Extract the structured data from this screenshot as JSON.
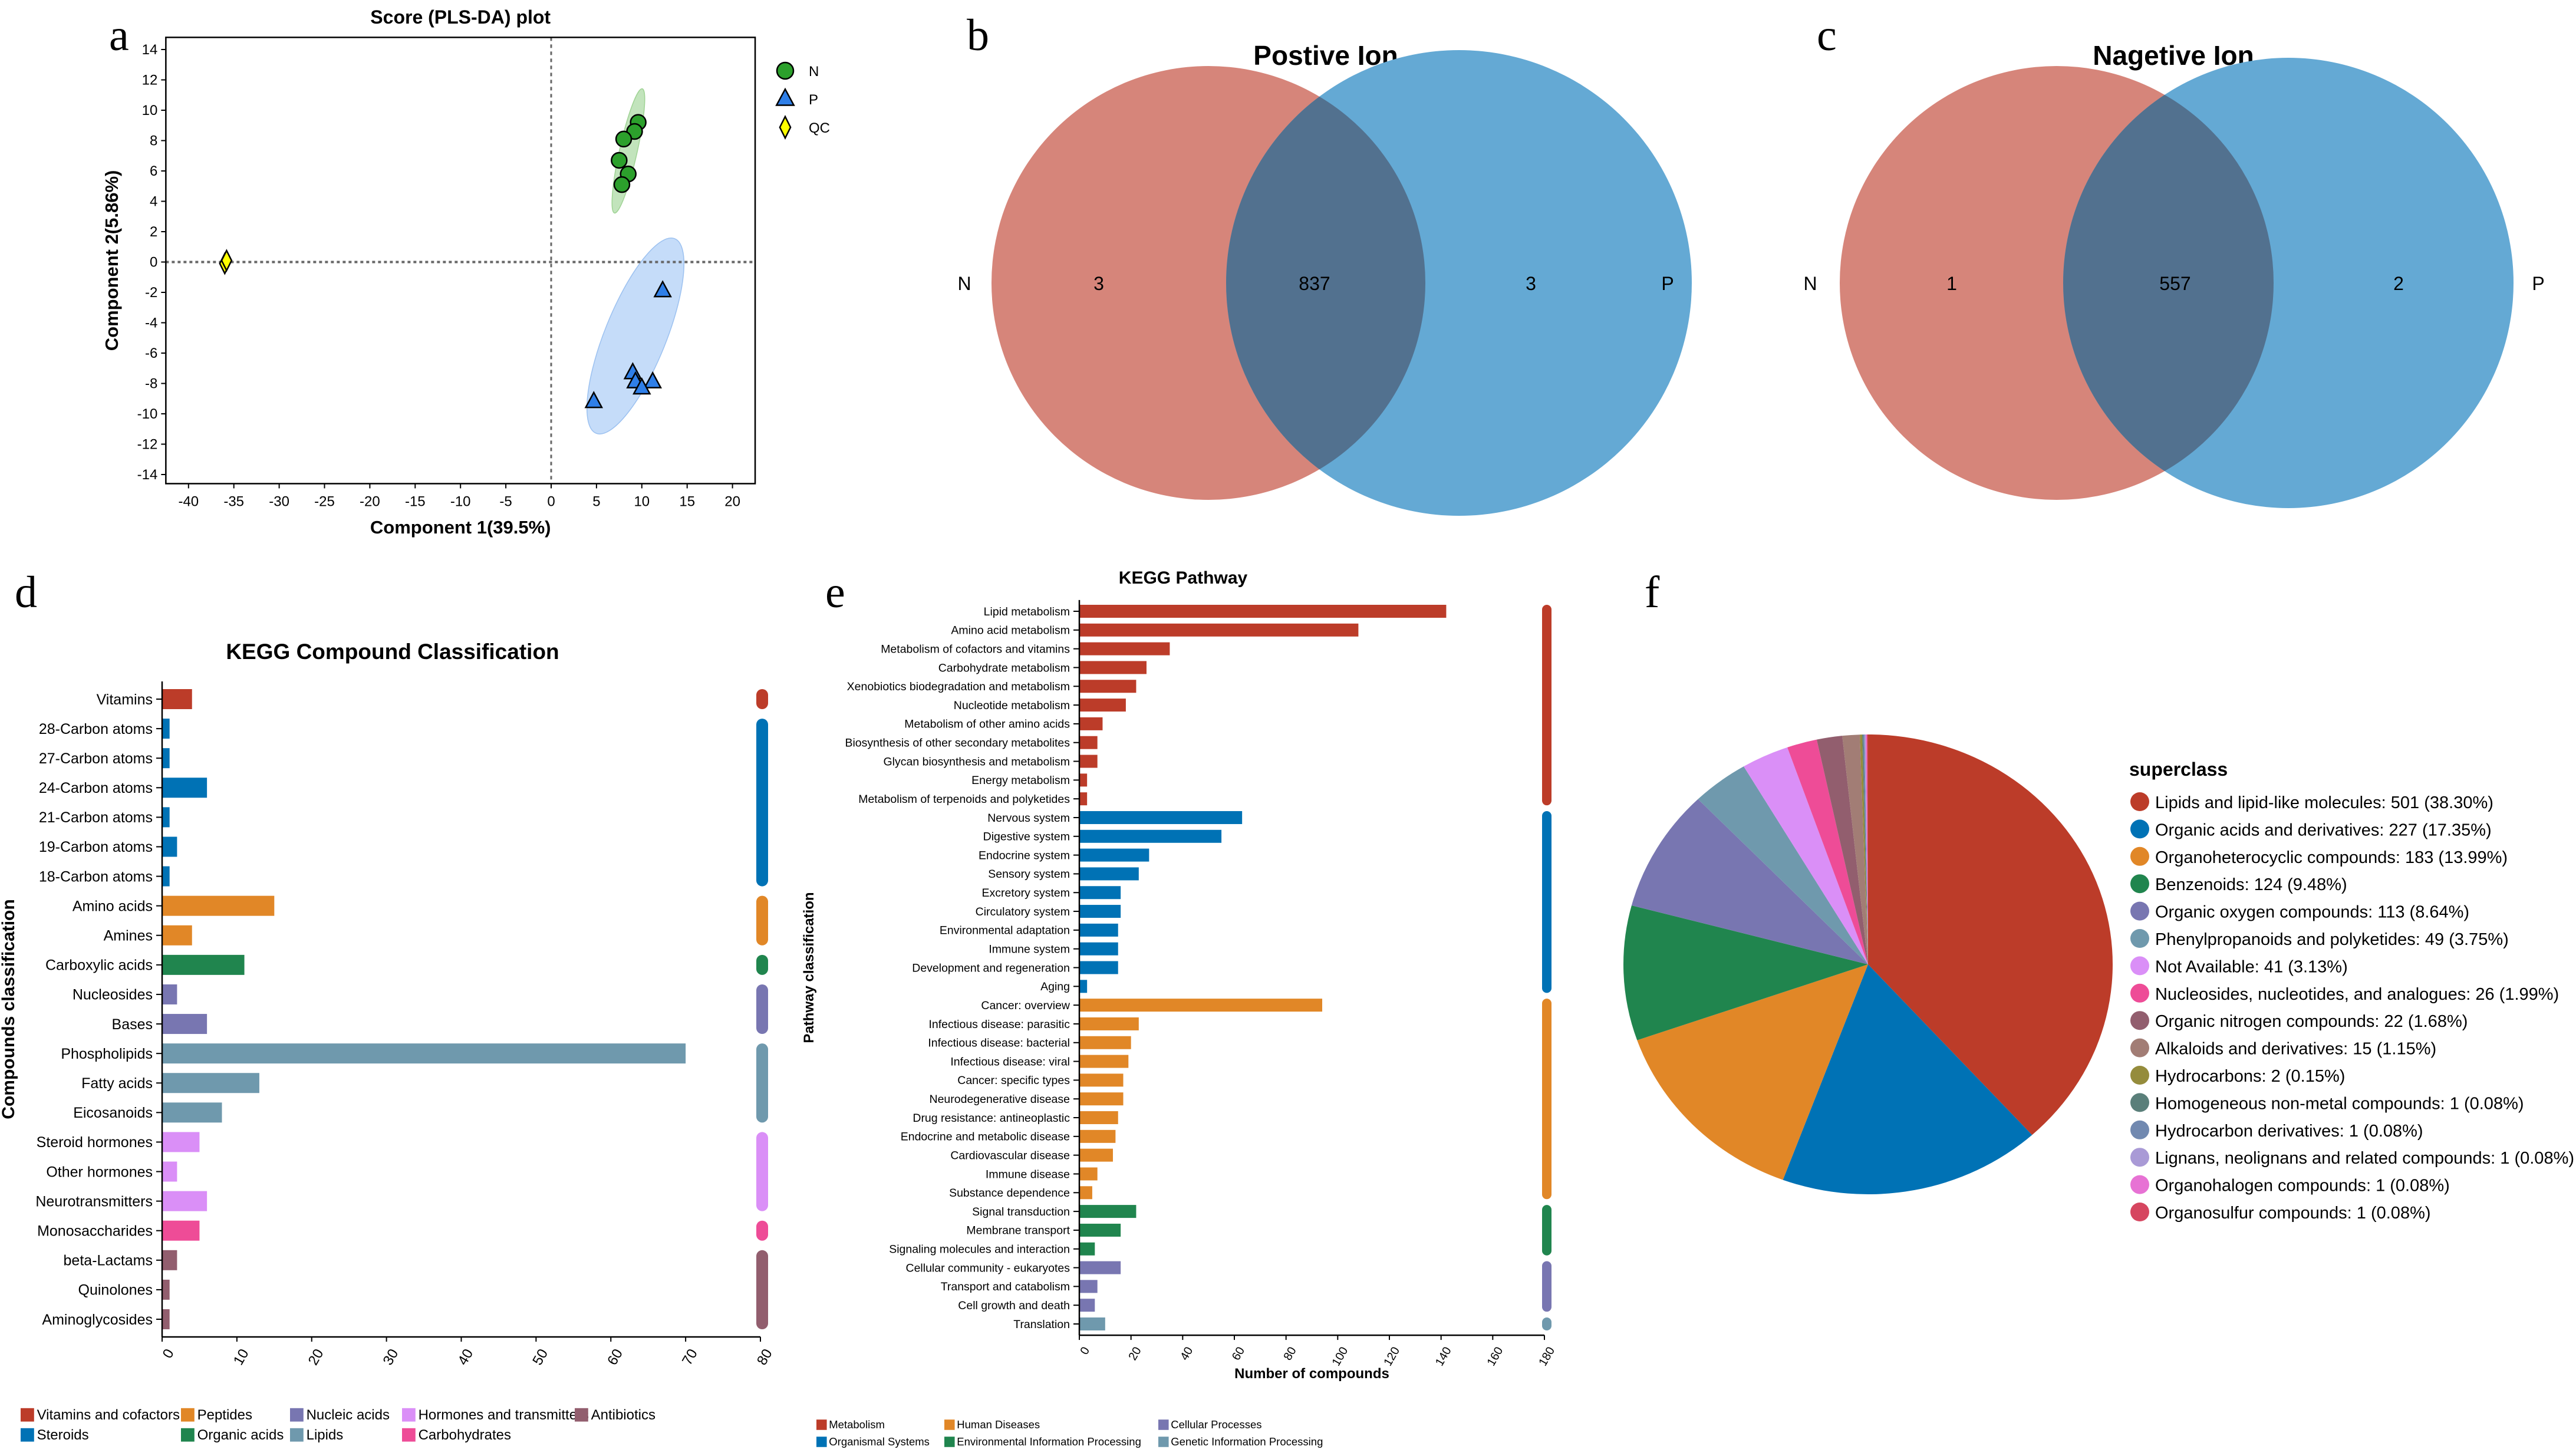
{
  "panel_letters": [
    "a",
    "b",
    "c",
    "d",
    "e",
    "f"
  ],
  "chart_data": [
    {
      "panel": "a",
      "type": "scatter",
      "title": "Score (PLS-DA) plot",
      "xlabel": "Component 1(39.5%)",
      "ylabel": "Component 2(5.86%)",
      "xlim": [
        -42.5,
        22.5
      ],
      "ylim": [
        -14.6,
        14.8
      ],
      "xticks": [
        -40,
        -35,
        -30,
        -25,
        -20,
        -15,
        -10,
        -5,
        0,
        5,
        10,
        15,
        20
      ],
      "yticks": [
        14,
        12,
        10,
        8,
        6,
        4,
        2,
        0,
        -2,
        -4,
        -6,
        -8,
        -10,
        -12,
        -14
      ],
      "reference_lines": {
        "x": 0,
        "y": 0,
        "style": "dashed"
      },
      "legend_position": "right",
      "series": [
        {
          "name": "N",
          "marker": "circle",
          "color": "#2CA02C",
          "ellipse_color": "#A8D8A0",
          "points": [
            [
              9.6,
              9.2
            ],
            [
              9.2,
              8.6
            ],
            [
              8.0,
              8.1
            ],
            [
              7.5,
              6.7
            ],
            [
              8.5,
              5.8
            ],
            [
              7.8,
              5.1
            ]
          ]
        },
        {
          "name": "P",
          "marker": "triangle",
          "color": "#2F7FE8",
          "ellipse_color": "#B7D3F7",
          "points": [
            [
              12.3,
              -1.9
            ],
            [
              9.0,
              -7.3
            ],
            [
              9.3,
              -7.9
            ],
            [
              11.2,
              -7.9
            ],
            [
              10.0,
              -8.3
            ],
            [
              4.7,
              -9.2
            ]
          ]
        },
        {
          "name": "QC",
          "marker": "diamond",
          "color": "#FFFF00",
          "points": [
            [
              -36.0,
              -0.1
            ],
            [
              -35.8,
              0.1
            ]
          ]
        }
      ]
    },
    {
      "panel": "b",
      "type": "venn",
      "title": "Postive Ion",
      "sets": [
        "N",
        "P"
      ],
      "only_left": "3",
      "overlap": "837",
      "only_right": "3",
      "colors": {
        "left": "#D6857A",
        "right": "#64A9D4",
        "overlap": "#52718F"
      }
    },
    {
      "panel": "c",
      "type": "venn",
      "title": "Nagetive Ion",
      "sets": [
        "N",
        "P"
      ],
      "only_left": "1",
      "overlap": "557",
      "only_right": "2",
      "colors": {
        "left": "#D6857A",
        "right": "#64A9D4",
        "overlap": "#52718F"
      }
    },
    {
      "panel": "d",
      "type": "bar",
      "orientation": "horizontal",
      "title": "KEGG Compound Classification",
      "ylabel": "Compounds classification",
      "xlabel": "",
      "xlim": [
        0,
        80
      ],
      "xticks": [
        0,
        10,
        20,
        30,
        40,
        50,
        60,
        70,
        80
      ],
      "groups": [
        {
          "name": "Vitamins and cofactors",
          "color": "#BC3C29"
        },
        {
          "name": "Steroids",
          "color": "#0072B5"
        },
        {
          "name": "Peptides",
          "color": "#E18727"
        },
        {
          "name": "Organic acids",
          "color": "#20854E"
        },
        {
          "name": "Nucleic acids",
          "color": "#7876B1"
        },
        {
          "name": "Lipids",
          "color": "#6F99AD"
        },
        {
          "name": "Hormones and transmitters",
          "color": "#DA8FF7"
        },
        {
          "name": "Carbohydrates",
          "color": "#EE4C97"
        },
        {
          "name": "Antibiotics",
          "color": "#925E6E"
        }
      ],
      "legend_order": [
        0,
        2,
        4,
        6,
        8,
        1,
        3,
        5,
        7
      ],
      "bars": [
        {
          "label": "Vitamins",
          "value": 4,
          "group": 0
        },
        {
          "label": "28-Carbon atoms",
          "value": 1,
          "group": 1
        },
        {
          "label": "27-Carbon atoms",
          "value": 1,
          "group": 1
        },
        {
          "label": "24-Carbon atoms",
          "value": 6,
          "group": 1
        },
        {
          "label": "21-Carbon atoms",
          "value": 1,
          "group": 1
        },
        {
          "label": "19-Carbon atoms",
          "value": 2,
          "group": 1
        },
        {
          "label": "18-Carbon atoms",
          "value": 1,
          "group": 1
        },
        {
          "label": "Amino acids",
          "value": 15,
          "group": 2
        },
        {
          "label": "Amines",
          "value": 4,
          "group": 2
        },
        {
          "label": "Carboxylic acids",
          "value": 11,
          "group": 3
        },
        {
          "label": "Nucleosides",
          "value": 2,
          "group": 4
        },
        {
          "label": "Bases",
          "value": 6,
          "group": 4
        },
        {
          "label": "Phospholipids",
          "value": 70,
          "group": 5
        },
        {
          "label": "Fatty acids",
          "value": 13,
          "group": 5
        },
        {
          "label": "Eicosanoids",
          "value": 8,
          "group": 5
        },
        {
          "label": "Steroid hormones",
          "value": 5,
          "group": 6
        },
        {
          "label": "Other hormones",
          "value": 2,
          "group": 6
        },
        {
          "label": "Neurotransmitters",
          "value": 6,
          "group": 6
        },
        {
          "label": "Monosaccharides",
          "value": 5,
          "group": 7
        },
        {
          "label": "beta-Lactams",
          "value": 2,
          "group": 8
        },
        {
          "label": "Quinolones",
          "value": 1,
          "group": 8
        },
        {
          "label": "Aminoglycosides",
          "value": 1,
          "group": 8
        }
      ]
    },
    {
      "panel": "e",
      "type": "bar",
      "orientation": "horizontal",
      "title": "KEGG Pathway",
      "ylabel": "Pathway classification",
      "xlabel": "Number of compounds",
      "xlim": [
        0,
        180
      ],
      "xticks": [
        0,
        20,
        40,
        60,
        80,
        100,
        120,
        140,
        160,
        180
      ],
      "groups": [
        {
          "name": "Metabolism",
          "color": "#BC3C29"
        },
        {
          "name": "Organismal Systems",
          "color": "#0072B5"
        },
        {
          "name": "Human Diseases",
          "color": "#E18727"
        },
        {
          "name": "Environmental Information Processing",
          "color": "#20854E"
        },
        {
          "name": "Cellular Processes",
          "color": "#7876B1"
        },
        {
          "name": "Genetic Information Processing",
          "color": "#6F99AD"
        }
      ],
      "legend_order": [
        0,
        2,
        4,
        1,
        3,
        5
      ],
      "bars": [
        {
          "label": "Lipid metabolism",
          "value": 142,
          "group": 0
        },
        {
          "label": "Amino acid metabolism",
          "value": 108,
          "group": 0
        },
        {
          "label": "Metabolism of cofactors and vitamins",
          "value": 35,
          "group": 0
        },
        {
          "label": "Carbohydrate metabolism",
          "value": 26,
          "group": 0
        },
        {
          "label": "Xenobiotics biodegradation and metabolism",
          "value": 22,
          "group": 0
        },
        {
          "label": "Nucleotide metabolism",
          "value": 18,
          "group": 0
        },
        {
          "label": "Metabolism of other amino acids",
          "value": 9,
          "group": 0
        },
        {
          "label": "Biosynthesis of other secondary metabolites",
          "value": 7,
          "group": 0
        },
        {
          "label": "Glycan biosynthesis and metabolism",
          "value": 7,
          "group": 0
        },
        {
          "label": "Energy metabolism",
          "value": 3,
          "group": 0
        },
        {
          "label": "Metabolism of terpenoids and polyketides",
          "value": 3,
          "group": 0
        },
        {
          "label": "Nervous system",
          "value": 63,
          "group": 1
        },
        {
          "label": "Digestive system",
          "value": 55,
          "group": 1
        },
        {
          "label": "Endocrine system",
          "value": 27,
          "group": 1
        },
        {
          "label": "Sensory system",
          "value": 23,
          "group": 1
        },
        {
          "label": "Excretory system",
          "value": 16,
          "group": 1
        },
        {
          "label": "Circulatory system",
          "value": 16,
          "group": 1
        },
        {
          "label": "Environmental adaptation",
          "value": 15,
          "group": 1
        },
        {
          "label": "Immune system",
          "value": 15,
          "group": 1
        },
        {
          "label": "Development and regeneration",
          "value": 15,
          "group": 1
        },
        {
          "label": "Aging",
          "value": 3,
          "group": 1
        },
        {
          "label": "Cancer: overview",
          "value": 94,
          "group": 2
        },
        {
          "label": "Infectious disease: parasitic",
          "value": 23,
          "group": 2
        },
        {
          "label": "Infectious disease: bacterial",
          "value": 20,
          "group": 2
        },
        {
          "label": "Infectious disease: viral",
          "value": 19,
          "group": 2
        },
        {
          "label": "Cancer: specific types",
          "value": 17,
          "group": 2
        },
        {
          "label": "Neurodegenerative disease",
          "value": 17,
          "group": 2
        },
        {
          "label": "Drug resistance: antineoplastic",
          "value": 15,
          "group": 2
        },
        {
          "label": "Endocrine and metabolic disease",
          "value": 14,
          "group": 2
        },
        {
          "label": "Cardiovascular disease",
          "value": 13,
          "group": 2
        },
        {
          "label": "Immune disease",
          "value": 7,
          "group": 2
        },
        {
          "label": "Substance dependence",
          "value": 5,
          "group": 2
        },
        {
          "label": "Signal transduction",
          "value": 22,
          "group": 3
        },
        {
          "label": "Membrane transport",
          "value": 16,
          "group": 3
        },
        {
          "label": "Signaling molecules and interaction",
          "value": 6,
          "group": 3
        },
        {
          "label": "Cellular community - eukaryotes",
          "value": 16,
          "group": 4
        },
        {
          "label": "Transport and catabolism",
          "value": 7,
          "group": 4
        },
        {
          "label": "Cell growth and death",
          "value": 6,
          "group": 4
        },
        {
          "label": "Translation",
          "value": 10,
          "group": 5
        }
      ]
    },
    {
      "panel": "f",
      "type": "pie",
      "legend_title": "superclass",
      "legend_position": "right",
      "slices": [
        {
          "label": "Lipids and lipid-like molecules",
          "value": 501,
          "percent": "38.30%",
          "color": "#BC3C29"
        },
        {
          "label": "Organic acids and derivatives",
          "value": 227,
          "percent": "17.35%",
          "color": "#0072B5"
        },
        {
          "label": "Organoheterocyclic compounds",
          "value": 183,
          "percent": "13.99%",
          "color": "#E18727"
        },
        {
          "label": "Benzenoids",
          "value": 124,
          "percent": "9.48%",
          "color": "#20854E"
        },
        {
          "label": "Organic oxygen compounds",
          "value": 113,
          "percent": "8.64%",
          "color": "#7876B1"
        },
        {
          "label": "Phenylpropanoids and polyketides",
          "value": 49,
          "percent": "3.75%",
          "color": "#6F99AD"
        },
        {
          "label": "Not Available",
          "value": 41,
          "percent": "3.13%",
          "color": "#DA8FF7"
        },
        {
          "label": "Nucleosides, nucleotides, and analogues",
          "value": 26,
          "percent": "1.99%",
          "color": "#EE4C97"
        },
        {
          "label": "Organic nitrogen compounds",
          "value": 22,
          "percent": "1.68%",
          "color": "#925E6E"
        },
        {
          "label": "Alkaloids and derivatives",
          "value": 15,
          "percent": "1.15%",
          "color": "#A27D75"
        },
        {
          "label": "Hydrocarbons",
          "value": 2,
          "percent": "0.15%",
          "color": "#958C3C"
        },
        {
          "label": "Homogeneous non-metal compounds",
          "value": 1,
          "percent": "0.08%",
          "color": "#5A7F7A"
        },
        {
          "label": "Hydrocarbon derivatives",
          "value": 1,
          "percent": "0.08%",
          "color": "#7189B0"
        },
        {
          "label": "Lignans, neolignans and related compounds",
          "value": 1,
          "percent": "0.08%",
          "color": "#A99AD6"
        },
        {
          "label": "Organohalogen compounds",
          "value": 1,
          "percent": "0.08%",
          "color": "#E772D4"
        },
        {
          "label": "Organosulfur compounds",
          "value": 1,
          "percent": "0.08%",
          "color": "#D64660"
        }
      ]
    }
  ]
}
